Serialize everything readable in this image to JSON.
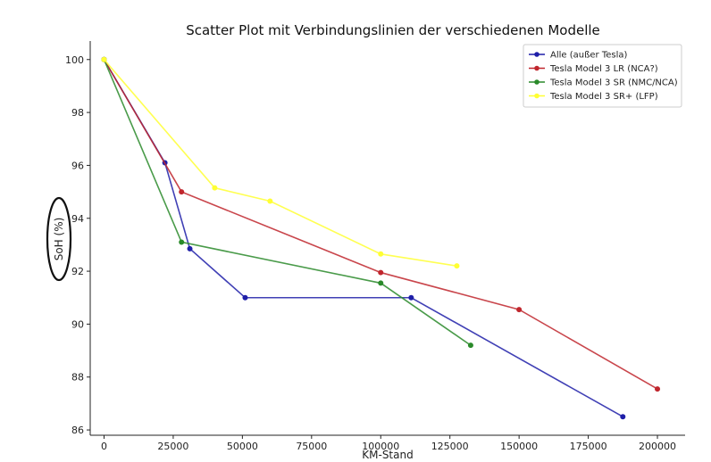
{
  "chart_data": {
    "type": "line",
    "title": "Scatter Plot mit Verbindungslinien der verschiedenen Modelle",
    "xlabel": "KM-Stand",
    "ylabel": "SoH (%)",
    "xlim": [
      -5000,
      210000
    ],
    "ylim": [
      85.8,
      100.7
    ],
    "xticks": [
      0,
      25000,
      50000,
      75000,
      100000,
      125000,
      150000,
      175000,
      200000
    ],
    "yticks": [
      86,
      88,
      90,
      92,
      94,
      96,
      98,
      100
    ],
    "grid": false,
    "legend_position": "top-right",
    "series": [
      {
        "name": "Alle (außer Tesla)",
        "color": "#1f1fa8",
        "points": [
          [
            0,
            100
          ],
          [
            22000,
            96.1
          ],
          [
            31000,
            92.85
          ],
          [
            51000,
            91.0
          ],
          [
            111000,
            91.0
          ],
          [
            187500,
            86.5
          ]
        ]
      },
      {
        "name": "Tesla Model 3 LR (NCA?)",
        "color": "#c0262d",
        "points": [
          [
            0,
            100
          ],
          [
            28000,
            95.0
          ],
          [
            100000,
            91.95
          ],
          [
            150000,
            90.55
          ],
          [
            200000,
            87.55
          ]
        ]
      },
      {
        "name": "Tesla Model 3 SR (NMC/NCA)",
        "color": "#2a8a2a",
        "points": [
          [
            0,
            100
          ],
          [
            28000,
            93.1
          ],
          [
            100000,
            91.55
          ],
          [
            132500,
            89.2
          ]
        ]
      },
      {
        "name": "Tesla Model 3 SR+ (LFP)",
        "color": "#ffff33",
        "points": [
          [
            0,
            100
          ],
          [
            40000,
            95.15
          ],
          [
            60000,
            94.65
          ],
          [
            100000,
            92.65
          ],
          [
            127500,
            92.2
          ]
        ]
      }
    ]
  }
}
